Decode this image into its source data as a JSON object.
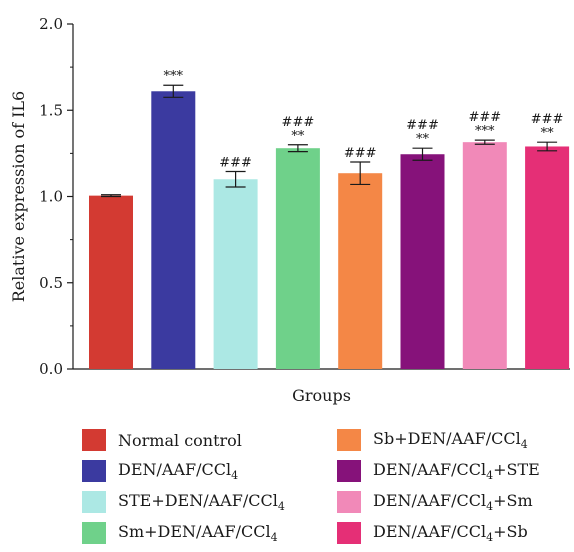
{
  "chart_data": {
    "type": "bar",
    "xlabel": "Groups",
    "ylabel": "Relative expression of IL6",
    "ylim": [
      0,
      2.0
    ],
    "yticks": [
      "0.0",
      "0.5",
      "1.0",
      "1.5",
      "2.0"
    ],
    "grid": false,
    "legend_position": "bottom",
    "categories": [
      {
        "pre": "Normal control",
        "sub": "",
        "post": ""
      },
      {
        "pre": "DEN/AAF/CCl",
        "sub": "4",
        "post": ""
      },
      {
        "pre": "STE+DEN/AAF/CCl",
        "sub": "4",
        "post": ""
      },
      {
        "pre": "Sm+DEN/AAF/CCl",
        "sub": "4",
        "post": ""
      },
      {
        "pre": "Sb+DEN/AAF/CCl",
        "sub": "4",
        "post": ""
      },
      {
        "pre": "DEN/AAF/CCl",
        "sub": "4",
        "post": "+STE"
      },
      {
        "pre": "DEN/AAF/CCl",
        "sub": "4",
        "post": "+Sm"
      },
      {
        "pre": "DEN/AAF/CCl",
        "sub": "4",
        "post": "+Sb"
      }
    ],
    "values": [
      1.005,
      1.61,
      1.1,
      1.28,
      1.135,
      1.245,
      1.315,
      1.29
    ],
    "errors": [
      0.005,
      0.035,
      0.045,
      0.02,
      0.065,
      0.035,
      0.012,
      0.025
    ],
    "colors": [
      "#d33a32",
      "#3b3aa0",
      "#ace8e4",
      "#6fd18a",
      "#f48746",
      "#86127a",
      "#f189b8",
      "#e52f76"
    ],
    "significance_upper": [
      "",
      "",
      "",
      "###",
      "",
      "###",
      "###",
      "###"
    ],
    "significance_lower": [
      "",
      "***",
      "###",
      "**",
      "###",
      "**",
      "***",
      "**"
    ]
  }
}
